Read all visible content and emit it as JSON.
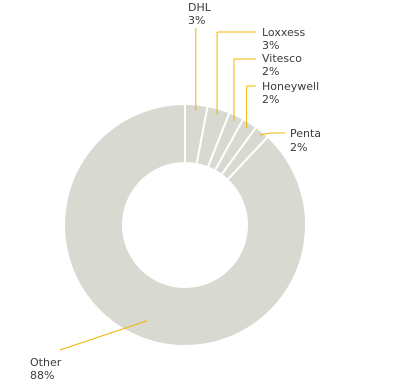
{
  "chart_data": {
    "type": "pie",
    "donut": true,
    "legend": "none",
    "slices": [
      {
        "label": "DHL",
        "value": 3,
        "pct_label": "3%",
        "color": "#d8d9d0"
      },
      {
        "label": "Loxxess",
        "value": 3,
        "pct_label": "3%",
        "color": "#d8d9d0"
      },
      {
        "label": "Vitesco",
        "value": 2,
        "pct_label": "2%",
        "color": "#d8d9d0"
      },
      {
        "label": "Honeywell",
        "value": 2,
        "pct_label": "2%",
        "color": "#d8d9d0"
      },
      {
        "label": "Penta",
        "value": 2,
        "pct_label": "2%",
        "color": "#d8d9d0"
      },
      {
        "label": "Other",
        "value": 88,
        "pct_label": "88%",
        "color": "#d8d9d0"
      }
    ],
    "leader_line_color": "#f0b400",
    "slice_separator_color": "#ffffff"
  }
}
